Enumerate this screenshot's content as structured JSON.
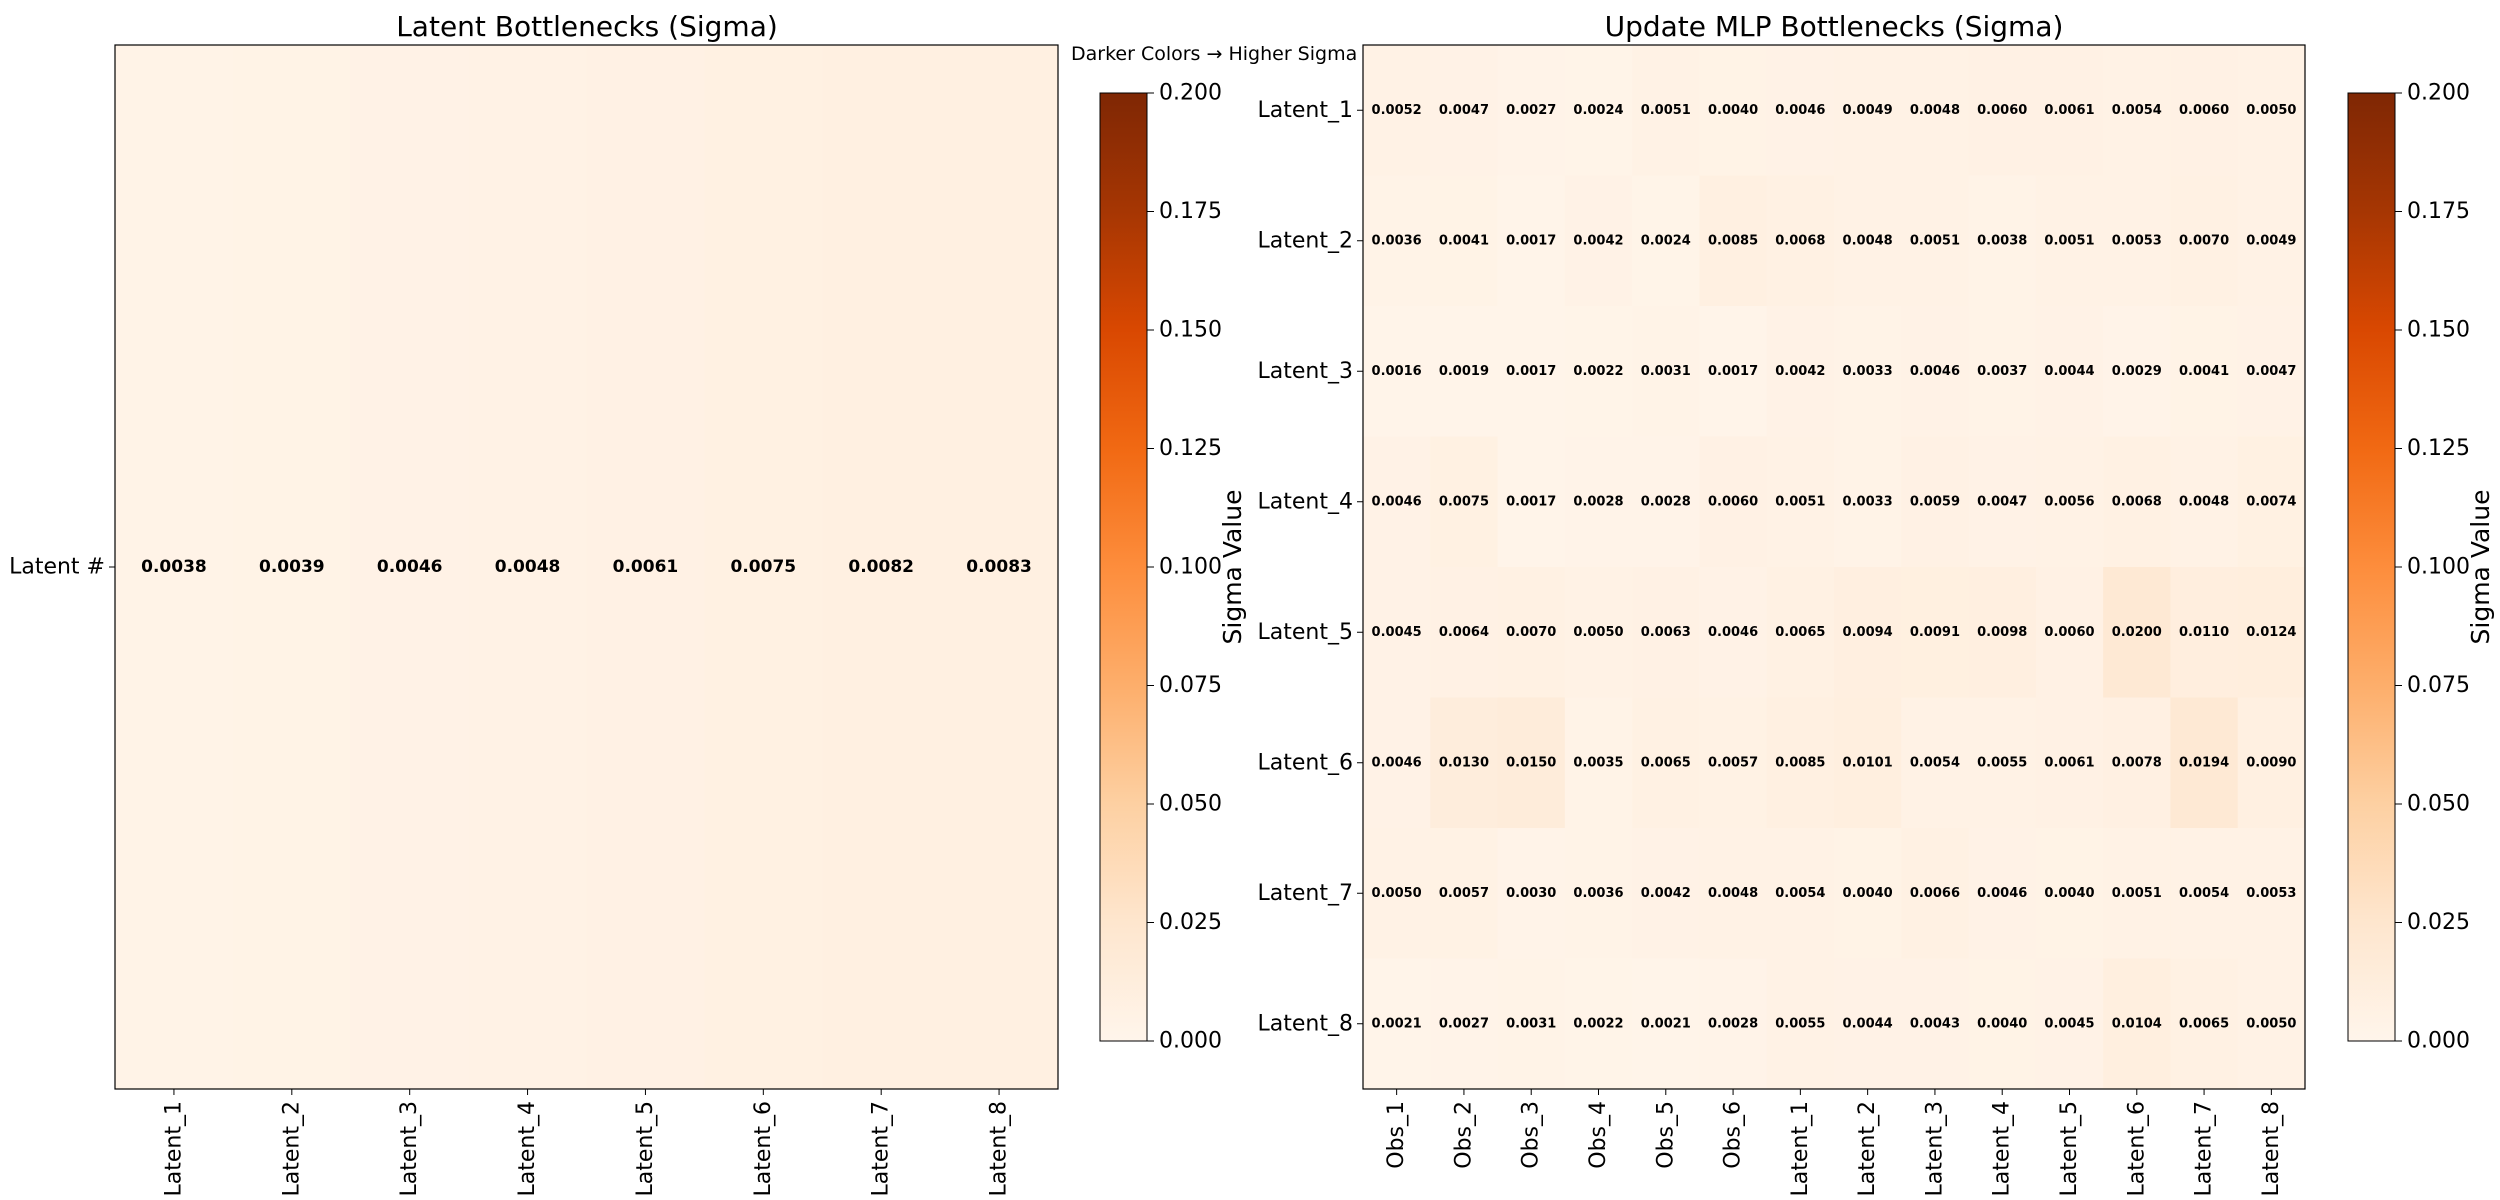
{
  "annotation": "Darker Colors → Higher Sigma Values",
  "colormap": {
    "name": "Oranges",
    "stops": [
      "#fff5eb",
      "#fee6ce",
      "#fdd0a2",
      "#fdae6b",
      "#fd8d3c",
      "#f16913",
      "#d94801",
      "#a63603",
      "#7f2704"
    ]
  },
  "chart_data": [
    {
      "type": "heatmap",
      "title": "Latent Bottlenecks (Sigma)",
      "x_categories": [
        "Latent_1",
        "Latent_2",
        "Latent_3",
        "Latent_4",
        "Latent_5",
        "Latent_6",
        "Latent_7",
        "Latent_8"
      ],
      "y_categories": [
        "Latent #"
      ],
      "values": [
        [
          0.0038,
          0.0039,
          0.0046,
          0.0048,
          0.0061,
          0.0075,
          0.0082,
          0.0083
        ]
      ],
      "vmin": 0.0,
      "vmax": 0.2,
      "colorbar_label": "Sigma Value",
      "colorbar_ticks": [
        "0.000",
        "0.025",
        "0.050",
        "0.075",
        "0.100",
        "0.125",
        "0.150",
        "0.175",
        "0.200"
      ]
    },
    {
      "type": "heatmap",
      "title": "Update MLP Bottlenecks (Sigma)",
      "x_categories": [
        "Obs_1",
        "Obs_2",
        "Obs_3",
        "Obs_4",
        "Obs_5",
        "Obs_6",
        "Latent_1",
        "Latent_2",
        "Latent_3",
        "Latent_4",
        "Latent_5",
        "Latent_6",
        "Latent_7",
        "Latent_8"
      ],
      "y_categories": [
        "Latent_1",
        "Latent_2",
        "Latent_3",
        "Latent_4",
        "Latent_5",
        "Latent_6",
        "Latent_7",
        "Latent_8"
      ],
      "values": [
        [
          0.0052,
          0.0047,
          0.0027,
          0.0024,
          0.0051,
          0.004,
          0.0046,
          0.0049,
          0.0048,
          0.006,
          0.0061,
          0.0054,
          0.006,
          0.005
        ],
        [
          0.0036,
          0.0041,
          0.0017,
          0.0042,
          0.0024,
          0.0085,
          0.0068,
          0.0048,
          0.0051,
          0.0038,
          0.0051,
          0.0053,
          0.007,
          0.0049
        ],
        [
          0.0016,
          0.0019,
          0.0017,
          0.0022,
          0.0031,
          0.0017,
          0.0042,
          0.0033,
          0.0046,
          0.0037,
          0.0044,
          0.0029,
          0.0041,
          0.0047
        ],
        [
          0.0046,
          0.0075,
          0.0017,
          0.0028,
          0.0028,
          0.006,
          0.0051,
          0.0033,
          0.0059,
          0.0047,
          0.0056,
          0.0068,
          0.0048,
          0.0074
        ],
        [
          0.0045,
          0.0064,
          0.007,
          0.005,
          0.0063,
          0.0046,
          0.0065,
          0.0094,
          0.0091,
          0.0098,
          0.006,
          0.02,
          0.011,
          0.0124
        ],
        [
          0.0046,
          0.013,
          0.015,
          0.0035,
          0.0065,
          0.0057,
          0.0085,
          0.0101,
          0.0054,
          0.0055,
          0.0061,
          0.0078,
          0.0194,
          0.009
        ],
        [
          0.005,
          0.0057,
          0.003,
          0.0036,
          0.0042,
          0.0048,
          0.0054,
          0.004,
          0.0066,
          0.0046,
          0.004,
          0.0051,
          0.0054,
          0.0053
        ],
        [
          0.0021,
          0.0027,
          0.0031,
          0.0022,
          0.0021,
          0.0028,
          0.0055,
          0.0044,
          0.0043,
          0.004,
          0.0045,
          0.0104,
          0.0065,
          0.005
        ]
      ],
      "vmin": 0.0,
      "vmax": 0.2,
      "colorbar_label": "Sigma Value",
      "colorbar_ticks": [
        "0.000",
        "0.025",
        "0.050",
        "0.075",
        "0.100",
        "0.125",
        "0.150",
        "0.175",
        "0.200"
      ]
    }
  ]
}
